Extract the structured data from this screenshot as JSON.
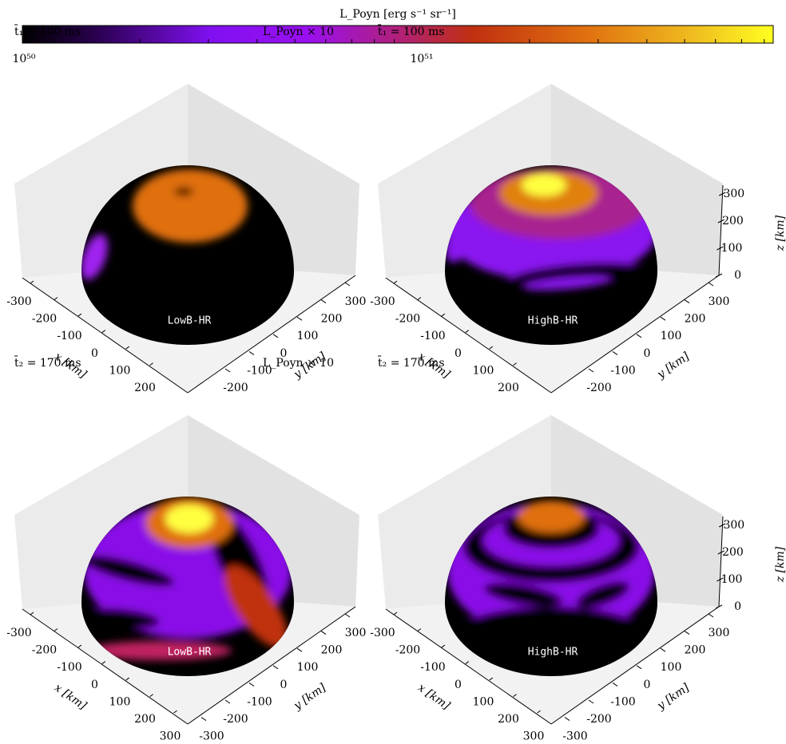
{
  "colorbar": {
    "label": "L_Poyn [erg s⁻¹ sr⁻¹]",
    "ticks": [
      "10⁵⁰",
      "10⁵¹"
    ]
  },
  "panels": [
    {
      "time": "t̄₁ = 100 ms",
      "note": "L_Poyn × 10",
      "model": "LowB-HR",
      "x_ticks": [
        -300,
        -200,
        -100,
        0,
        100,
        200
      ],
      "y_ticks": [
        300,
        200,
        100,
        0,
        -100,
        -200
      ],
      "x_label": "x [km]",
      "y_label": "y [km]"
    },
    {
      "time": "t̄₁ = 100 ms",
      "model": "HighB-HR",
      "x_ticks": [
        -300,
        -200,
        -100,
        0,
        100,
        200
      ],
      "y_ticks": [
        300,
        200,
        100,
        0,
        -100,
        -200
      ],
      "x_label": "x [km]",
      "y_label": "y [km]",
      "z_ticks": [
        0,
        100,
        200,
        300
      ],
      "z_label": "z [km]"
    },
    {
      "time": "t̄₂ = 170 ms",
      "note": "L_Poyn × 10",
      "model": "LowB-HR",
      "x_ticks": [
        -300,
        -200,
        -100,
        0,
        100,
        200,
        300
      ],
      "y_ticks": [
        300,
        200,
        100,
        0,
        -100,
        -200,
        -300
      ],
      "x_label": "x [km]",
      "y_label": "y [km]"
    },
    {
      "time": "t̄₂ = 170 ms",
      "model": "HighB-HR",
      "x_ticks": [
        -300,
        -200,
        -100,
        0,
        100,
        200,
        300
      ],
      "y_ticks": [
        300,
        200,
        100,
        0,
        -100,
        -200,
        -300
      ],
      "x_label": "x [km]",
      "y_label": "y [km]",
      "z_ticks": [
        0,
        100,
        200,
        300
      ],
      "z_label": "z [km]"
    }
  ]
}
